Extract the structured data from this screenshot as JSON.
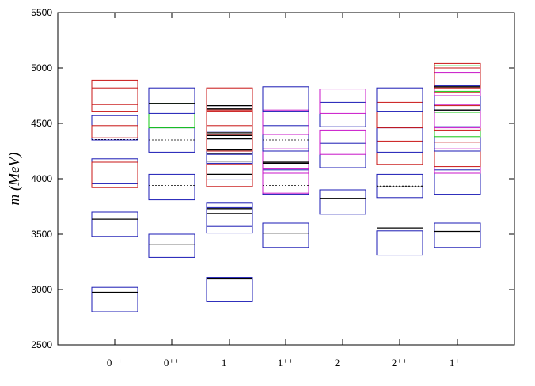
{
  "chart_data": {
    "type": "spectrum-boxes",
    "ylabel": "m  (MeV)",
    "ylim": [
      2500,
      5500
    ],
    "yticks": [
      2500,
      3000,
      3500,
      4000,
      4500,
      5000,
      5500
    ],
    "categories": [
      {
        "label": "0⁻⁺"
      },
      {
        "label": "0⁺⁺"
      },
      {
        "label": "1⁻⁻"
      },
      {
        "label": "1⁺⁺"
      },
      {
        "label": "2⁻⁻"
      },
      {
        "label": "2⁺⁺"
      },
      {
        "label": "1⁺⁻"
      }
    ],
    "colors": {
      "blue": "#1a1ab4",
      "red": "#c81414",
      "green": "#14c814",
      "magenta": "#c814c8",
      "line": "#000000",
      "axis": "#000000"
    },
    "boxes": [
      {
        "cat": 0,
        "color": "blue",
        "lo": 2800,
        "hi": 3020
      },
      {
        "cat": 0,
        "color": "blue",
        "lo": 3480,
        "hi": 3700
      },
      {
        "cat": 0,
        "color": "blue",
        "lo": 3960,
        "hi": 4180
      },
      {
        "cat": 0,
        "color": "red",
        "lo": 3920,
        "hi": 4150
      },
      {
        "cat": 0,
        "color": "blue",
        "lo": 4350,
        "hi": 4570
      },
      {
        "cat": 0,
        "color": "red",
        "lo": 4370,
        "hi": 4480
      },
      {
        "cat": 0,
        "color": "red",
        "lo": 4610,
        "hi": 4820
      },
      {
        "cat": 0,
        "color": "red",
        "lo": 4670,
        "hi": 4890
      },
      {
        "cat": 1,
        "color": "blue",
        "lo": 3290,
        "hi": 3500
      },
      {
        "cat": 1,
        "color": "blue",
        "lo": 3810,
        "hi": 4040
      },
      {
        "cat": 1,
        "color": "blue",
        "lo": 4240,
        "hi": 4460
      },
      {
        "cat": 1,
        "color": "green",
        "lo": 4460,
        "hi": 4680
      },
      {
        "cat": 1,
        "color": "blue",
        "lo": 4590,
        "hi": 4820
      },
      {
        "cat": 2,
        "color": "blue",
        "lo": 2890,
        "hi": 3110
      },
      {
        "cat": 2,
        "color": "blue",
        "lo": 3510,
        "hi": 3740
      },
      {
        "cat": 2,
        "color": "blue",
        "lo": 3570,
        "hi": 3780
      },
      {
        "cat": 2,
        "color": "blue",
        "lo": 3990,
        "hi": 4220
      },
      {
        "cat": 2,
        "color": "red",
        "lo": 3930,
        "hi": 4130
      },
      {
        "cat": 2,
        "color": "blue",
        "lo": 4140,
        "hi": 4360
      },
      {
        "cat": 2,
        "color": "red",
        "lo": 4250,
        "hi": 4480
      },
      {
        "cat": 2,
        "color": "blue",
        "lo": 4430,
        "hi": 4660
      },
      {
        "cat": 2,
        "color": "red",
        "lo": 4400,
        "hi": 4620
      },
      {
        "cat": 2,
        "color": "red",
        "lo": 4610,
        "hi": 4820
      },
      {
        "cat": 3,
        "color": "blue",
        "lo": 3380,
        "hi": 3600
      },
      {
        "cat": 3,
        "color": "blue",
        "lo": 3860,
        "hi": 4080
      },
      {
        "cat": 3,
        "color": "magenta",
        "lo": 3870,
        "hi": 4090
      },
      {
        "cat": 3,
        "color": "magenta",
        "lo": 4050,
        "hi": 4270
      },
      {
        "cat": 3,
        "color": "blue",
        "lo": 4250,
        "hi": 4480
      },
      {
        "cat": 3,
        "color": "magenta",
        "lo": 4400,
        "hi": 4620
      },
      {
        "cat": 3,
        "color": "blue",
        "lo": 4610,
        "hi": 4830
      },
      {
        "cat": 4,
        "color": "blue",
        "lo": 3680,
        "hi": 3900
      },
      {
        "cat": 4,
        "color": "blue",
        "lo": 4100,
        "hi": 4320
      },
      {
        "cat": 4,
        "color": "magenta",
        "lo": 4220,
        "hi": 4440
      },
      {
        "cat": 4,
        "color": "blue",
        "lo": 4470,
        "hi": 4690
      },
      {
        "cat": 4,
        "color": "magenta",
        "lo": 4590,
        "hi": 4810
      },
      {
        "cat": 5,
        "color": "blue",
        "lo": 3310,
        "hi": 3530
      },
      {
        "cat": 5,
        "color": "blue",
        "lo": 3830,
        "hi": 4040
      },
      {
        "cat": 5,
        "color": "red",
        "lo": 4130,
        "hi": 4340
      },
      {
        "cat": 5,
        "color": "blue",
        "lo": 4240,
        "hi": 4460
      },
      {
        "cat": 5,
        "color": "red",
        "lo": 4460,
        "hi": 4690
      },
      {
        "cat": 5,
        "color": "blue",
        "lo": 4610,
        "hi": 4820
      },
      {
        "cat": 6,
        "color": "blue",
        "lo": 3380,
        "hi": 3600
      },
      {
        "cat": 6,
        "color": "blue",
        "lo": 3860,
        "hi": 4080
      },
      {
        "cat": 6,
        "color": "magenta",
        "lo": 4050,
        "hi": 4270
      },
      {
        "cat": 6,
        "color": "red",
        "lo": 4110,
        "hi": 4330
      },
      {
        "cat": 6,
        "color": "blue",
        "lo": 4250,
        "hi": 4470
      },
      {
        "cat": 6,
        "color": "green",
        "lo": 4380,
        "hi": 4600
      },
      {
        "cat": 6,
        "color": "red",
        "lo": 4440,
        "hi": 4660
      },
      {
        "cat": 6,
        "color": "magenta",
        "lo": 4460,
        "hi": 4670
      },
      {
        "cat": 6,
        "color": "blue",
        "lo": 4620,
        "hi": 4840
      },
      {
        "cat": 6,
        "color": "green",
        "lo": 4790,
        "hi": 5020
      },
      {
        "cat": 6,
        "color": "red",
        "lo": 4780,
        "hi": 5000
      },
      {
        "cat": 6,
        "color": "magenta",
        "lo": 4750,
        "hi": 4960
      },
      {
        "cat": 6,
        "color": "red",
        "lo": 4820,
        "hi": 5040
      }
    ],
    "lines": [
      {
        "cat": 0,
        "value": 2975,
        "style": "solid"
      },
      {
        "cat": 0,
        "value": 3635,
        "style": "solid"
      },
      {
        "cat": 0,
        "value": 4160,
        "style": "dashed"
      },
      {
        "cat": 0,
        "value": 4355,
        "style": "dashed"
      },
      {
        "cat": 1,
        "value": 3410,
        "style": "solid"
      },
      {
        "cat": 1,
        "value": 3925,
        "style": "dashed"
      },
      {
        "cat": 1,
        "value": 3940,
        "style": "dashed"
      },
      {
        "cat": 1,
        "value": 4350,
        "style": "dashed"
      },
      {
        "cat": 1,
        "value": 4680,
        "style": "solid"
      },
      {
        "cat": 2,
        "value": 3097,
        "style": "solid"
      },
      {
        "cat": 2,
        "value": 3686,
        "style": "solid"
      },
      {
        "cat": 2,
        "value": 3730,
        "style": "solid"
      },
      {
        "cat": 2,
        "value": 4040,
        "style": "solid"
      },
      {
        "cat": 2,
        "value": 4160,
        "style": "solid"
      },
      {
        "cat": 2,
        "value": 4230,
        "style": "solid"
      },
      {
        "cat": 2,
        "value": 4260,
        "style": "solid"
      },
      {
        "cat": 2,
        "value": 4360,
        "style": "solid"
      },
      {
        "cat": 2,
        "value": 4390,
        "style": "solid"
      },
      {
        "cat": 2,
        "value": 4415,
        "style": "solid"
      },
      {
        "cat": 2,
        "value": 4630,
        "style": "solid"
      },
      {
        "cat": 2,
        "value": 4660,
        "style": "solid"
      },
      {
        "cat": 3,
        "value": 3510,
        "style": "solid"
      },
      {
        "cat": 3,
        "value": 3940,
        "style": "dashed"
      },
      {
        "cat": 3,
        "value": 4140,
        "style": "solid"
      },
      {
        "cat": 3,
        "value": 4150,
        "style": "solid"
      },
      {
        "cat": 3,
        "value": 4350,
        "style": "dashed"
      },
      {
        "cat": 4,
        "value": 3823,
        "style": "solid"
      },
      {
        "cat": 5,
        "value": 3556,
        "style": "solid"
      },
      {
        "cat": 5,
        "value": 3927,
        "style": "solid"
      },
      {
        "cat": 5,
        "value": 3935,
        "style": "dashed"
      },
      {
        "cat": 5,
        "value": 4160,
        "style": "dashed"
      },
      {
        "cat": 6,
        "value": 3525,
        "style": "solid"
      },
      {
        "cat": 6,
        "value": 4160,
        "style": "dashed"
      },
      {
        "cat": 6,
        "value": 4620,
        "style": "solid"
      },
      {
        "cat": 6,
        "value": 4830,
        "style": "solid"
      }
    ]
  }
}
